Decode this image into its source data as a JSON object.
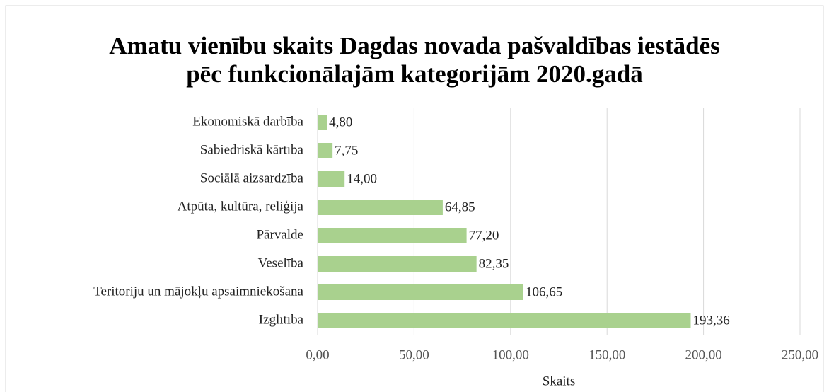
{
  "chart_data": {
    "type": "bar",
    "orientation": "horizontal",
    "title": [
      "Amatu vienību skaits Dagdas novada pašvaldības iestādēs",
      "pēc funkcionālajām kategorijām 2020.gadā"
    ],
    "categories": [
      "Ekonomiskā darbība",
      "Sabiedriskā kārtība",
      "Sociālā aizsardzība",
      "Atpūta, kultūra, reliģija",
      "Pārvalde",
      "Veselība",
      "Teritoriju un mājokļu apsaimniekošana",
      "Izglītība"
    ],
    "values": [
      4.8,
      7.75,
      14.0,
      64.85,
      77.2,
      82.35,
      106.65,
      193.36
    ],
    "value_labels": [
      "4,80",
      "7,75",
      "14,00",
      "64,85",
      "77,20",
      "82,35",
      "106,65",
      "193,36"
    ],
    "color": "#a9d18e",
    "xlim": [
      0,
      250
    ],
    "xticks": [
      {
        "value": 0,
        "label": "0,00"
      },
      {
        "value": 50,
        "label": "50,00"
      },
      {
        "value": 100,
        "label": "100,00"
      },
      {
        "value": 150,
        "label": "150,00"
      },
      {
        "value": 200,
        "label": "200,00"
      },
      {
        "value": 250,
        "label": "250,00"
      }
    ],
    "xlabel": "Skaits",
    "grid": true
  }
}
